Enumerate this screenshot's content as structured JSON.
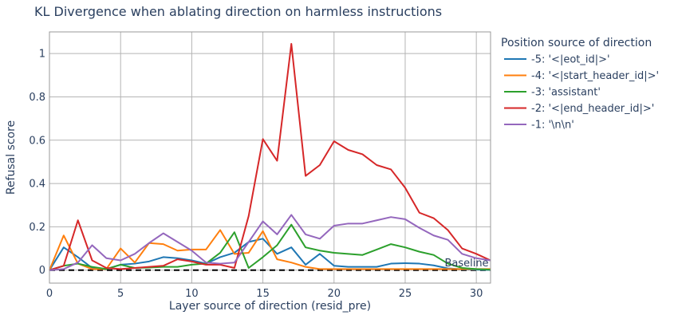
{
  "chart_data": {
    "type": "line",
    "title": "KL Divergence when ablating direction on harmless instructions",
    "xlabel": "Layer source of direction (resid_pre)",
    "ylabel": "Refusal score",
    "xlim": [
      0,
      31
    ],
    "ylim": [
      -0.06,
      1.1
    ],
    "xticks": [
      0,
      5,
      10,
      15,
      20,
      25,
      30
    ],
    "yticks": [
      0,
      0.2,
      0.4,
      0.6,
      0.8,
      1
    ],
    "ytick_labels": [
      "0",
      "0.2",
      "0.4",
      "0.6",
      "0.8",
      "1"
    ],
    "grid": true,
    "legend_title": "Position source of direction",
    "legend_position": "right",
    "x": [
      0,
      1,
      2,
      3,
      4,
      5,
      6,
      7,
      8,
      9,
      10,
      11,
      12,
      13,
      14,
      15,
      16,
      17,
      18,
      19,
      20,
      21,
      22,
      23,
      24,
      25,
      26,
      27,
      28,
      29,
      30,
      31
    ],
    "series": [
      {
        "name": "-5: '<|eot_id|>'",
        "color": "#1f77b4",
        "values": [
          0,
          0.105,
          0.06,
          0.01,
          0.005,
          0.025,
          0.03,
          0.04,
          0.06,
          0.055,
          0.045,
          0.03,
          0.06,
          0.08,
          0.13,
          0.145,
          0.075,
          0.105,
          0.025,
          0.075,
          0.02,
          0.015,
          0.015,
          0.015,
          0.03,
          0.032,
          0.03,
          0.022,
          0.008,
          0.004,
          0.002,
          0.001
        ]
      },
      {
        "name": "-4: '<|start_header_id|>'",
        "color": "#ff7f0e",
        "values": [
          0,
          0.16,
          0.03,
          0.005,
          0.005,
          0.1,
          0.035,
          0.125,
          0.12,
          0.09,
          0.095,
          0.095,
          0.185,
          0.075,
          0.08,
          0.18,
          0.05,
          0.035,
          0.015,
          0.005,
          0.005,
          0.005,
          0.005,
          0.005,
          0.005,
          0.005,
          0.005,
          0.005,
          0.005,
          0.005,
          0.005,
          0.005
        ]
      },
      {
        "name": "-3: 'assistant'",
        "color": "#2ca02c",
        "values": [
          0,
          0.02,
          0.03,
          0.015,
          0.005,
          0.025,
          0.01,
          0.012,
          0.015,
          0.015,
          0.025,
          0.03,
          0.08,
          0.175,
          0.01,
          0.06,
          0.115,
          0.21,
          0.105,
          0.09,
          0.08,
          0.075,
          0.07,
          0.095,
          0.12,
          0.105,
          0.085,
          0.07,
          0.03,
          0.01,
          0.005,
          0.002
        ]
      },
      {
        "name": "-2: '<|end_header_id|>'",
        "color": "#d62728",
        "values": [
          0,
          0.02,
          0.23,
          0.045,
          0.01,
          0.005,
          0.01,
          0.015,
          0.02,
          0.05,
          0.04,
          0.025,
          0.025,
          0.01,
          0.25,
          0.605,
          0.505,
          1.045,
          0.435,
          0.485,
          0.595,
          0.555,
          0.535,
          0.485,
          0.465,
          0.38,
          0.265,
          0.24,
          0.185,
          0.1,
          0.075,
          0.045
        ]
      },
      {
        "name": "-1: '\\n\\n'",
        "color": "#9467bd",
        "values": [
          0,
          0.005,
          0.035,
          0.115,
          0.055,
          0.045,
          0.075,
          0.125,
          0.17,
          0.13,
          0.09,
          0.035,
          0.03,
          0.035,
          0.13,
          0.225,
          0.165,
          0.255,
          0.165,
          0.145,
          0.205,
          0.215,
          0.215,
          0.23,
          0.245,
          0.235,
          0.195,
          0.16,
          0.14,
          0.075,
          0.055,
          0.045
        ]
      }
    ],
    "baseline": {
      "label": "Baseline",
      "value": 0,
      "color": "#000000",
      "style": "dash"
    }
  }
}
